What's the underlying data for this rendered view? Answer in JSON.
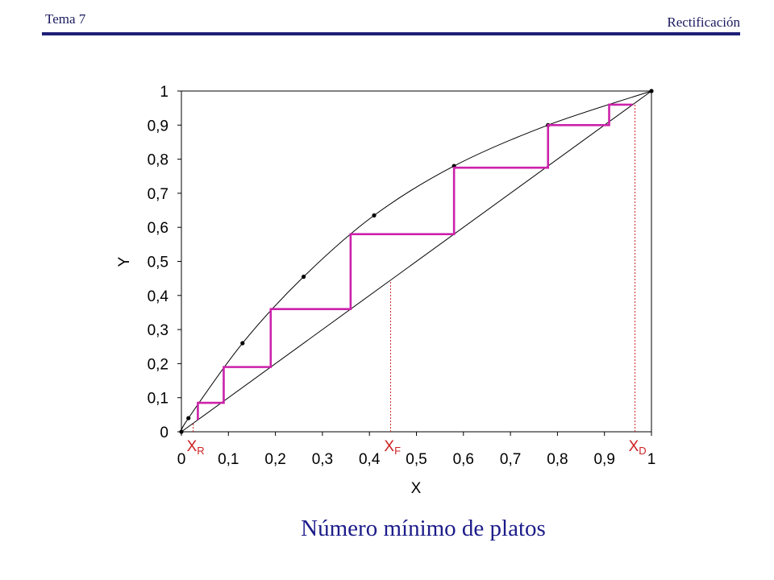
{
  "header": {
    "left": "Tema 7",
    "right": "Rectificación"
  },
  "caption": "Número mínimo de platos",
  "colors": {
    "steps": "#cc22aa",
    "reference": "#cc2222",
    "curve": "#000000",
    "header": "#1e1e78"
  },
  "chart_data": {
    "type": "line",
    "title": "",
    "xlabel": "X",
    "ylabel": "Y",
    "xlim": [
      0,
      1
    ],
    "ylim": [
      0,
      1
    ],
    "xticks": [
      0,
      0.1,
      0.2,
      0.3,
      0.4,
      0.5,
      0.6,
      0.7,
      0.8,
      0.9,
      1
    ],
    "xtick_labels": [
      "0",
      "0,1",
      "0,2",
      "0,3",
      "0,4",
      "0,5",
      "0,6",
      "0,7",
      "0,8",
      "0,9",
      "1"
    ],
    "yticks": [
      0,
      0.1,
      0.2,
      0.3,
      0.4,
      0.5,
      0.6,
      0.7,
      0.8,
      0.9,
      1
    ],
    "ytick_labels": [
      "0",
      "0,1",
      "0,2",
      "0,3",
      "0,4",
      "0,5",
      "0,6",
      "0,7",
      "0,8",
      "0,9",
      "1"
    ],
    "grid": false,
    "equilibrium_points": [
      [
        0,
        0
      ],
      [
        0.015,
        0.04
      ],
      [
        0.13,
        0.26
      ],
      [
        0.26,
        0.455
      ],
      [
        0.41,
        0.635
      ],
      [
        0.58,
        0.78
      ],
      [
        0.78,
        0.9
      ],
      [
        1,
        1
      ]
    ],
    "diagonal": [
      [
        0,
        0
      ],
      [
        1,
        1
      ]
    ],
    "steps": [
      [
        0.96,
        0.96
      ],
      [
        0.91,
        0.96
      ],
      [
        0.91,
        0.9
      ],
      [
        0.78,
        0.9
      ],
      [
        0.78,
        0.775
      ],
      [
        0.58,
        0.775
      ],
      [
        0.58,
        0.58
      ],
      [
        0.36,
        0.58
      ],
      [
        0.36,
        0.36
      ],
      [
        0.19,
        0.36
      ],
      [
        0.19,
        0.19
      ],
      [
        0.09,
        0.19
      ],
      [
        0.09,
        0.085
      ],
      [
        0.035,
        0.085
      ],
      [
        0.035,
        0.035
      ]
    ],
    "reference_lines": [
      {
        "label": "X",
        "sub": "R",
        "x": 0.025
      },
      {
        "label": "X",
        "sub": "F",
        "x": 0.445
      },
      {
        "label": "X",
        "sub": "D",
        "x": 0.965
      }
    ]
  }
}
